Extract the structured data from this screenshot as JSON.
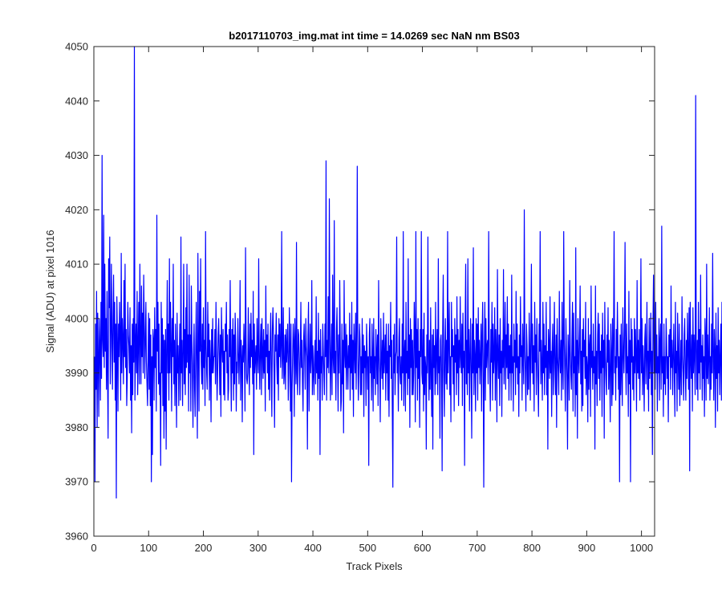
{
  "figure": {
    "background": "#ffffff",
    "axes_color": "#262626"
  },
  "chart_data": {
    "type": "line",
    "title": "b2017110703_img.mat int time = 14.0269 sec  NaN nm BS03",
    "xlabel": "Track Pixels",
    "ylabel": "Signal (ADU) at pixel 1016",
    "xlim": [
      0,
      1024
    ],
    "ylim": [
      3960,
      4050
    ],
    "xticks": [
      0,
      100,
      200,
      300,
      400,
      500,
      600,
      700,
      800,
      900,
      1000
    ],
    "yticks": [
      3960,
      3970,
      3980,
      3990,
      4000,
      4010,
      4020,
      4030,
      4040,
      4050
    ],
    "grid": false,
    "legend": "none",
    "series": [
      {
        "color": "#0000ff",
        "x_start": 1,
        "x_step": 1,
        "y": [
          3993,
          3970,
          3999,
          3987,
          4005,
          3980,
          4001,
          3993,
          3982,
          4000,
          3995,
          3985,
          4003,
          3989,
          4030,
          3996,
          3993,
          4019,
          3991,
          4010,
          3994,
          4000,
          3987,
          4005,
          3990,
          3978,
          4011,
          4002,
          4015,
          3988,
          3995,
          4010,
          3997,
          3987,
          4000,
          4008,
          3992,
          4003,
          3985,
          3999,
          3967,
          4004,
          3996,
          3983,
          3999,
          3993,
          4003,
          3997,
          3985,
          4012,
          3990,
          4000,
          3996,
          3988,
          4007,
          3993,
          4010,
          3991,
          3998,
          3984,
          3989,
          4003,
          3997,
          3995,
          3990,
          4002,
          3985,
          3995,
          3979,
          3999,
          3986,
          4000,
          3992,
          4050,
          3985,
          3994,
          3999,
          3990,
          4005,
          3986,
          3995,
          4003,
          3988,
          4010,
          3996,
          3988,
          4006,
          3993,
          4001,
          3990,
          4008,
          3999,
          3989,
          3996,
          4003,
          3992,
          3988,
          3984,
          3993,
          4001,
          3987,
          4000,
          3984,
          3997,
          3970,
          3993,
          3975,
          3998,
          3996,
          3985,
          4002,
          3991,
          3998,
          3983,
          4019,
          3994,
          4003,
          3988,
          3999,
          3986,
          3990,
          3973,
          4003,
          3990,
          4000,
          3984,
          3997,
          3978,
          3996,
          3983,
          3998,
          3976,
          3994,
          4007,
          3990,
          3999,
          3985,
          4011,
          3990,
          4003,
          3995,
          3983,
          4000,
          3993,
          4010,
          3988,
          3996,
          3984,
          3999,
          3991,
          3980,
          4001,
          3990,
          3995,
          3984,
          3993,
          3999,
          3985,
          4015,
          3990,
          3996,
          3984,
          3994,
          4010,
          3988,
          3998,
          3986,
          4002,
          3991,
          4010,
          3992,
          3997,
          3983,
          4008,
          3990,
          3997,
          3983,
          4006,
          3996,
          3989,
          3980,
          3993,
          3999,
          3987,
          3982,
          3995,
          4003,
          3990,
          3978,
          4012,
          3995,
          3983,
          4005,
          3994,
          4011,
          3992,
          3988,
          3999,
          3987,
          4002,
          3991,
          3996,
          3984,
          4016,
          3995,
          3990,
          3987,
          4003,
          3993,
          3999,
          3985,
          3996,
          3992,
          3981,
          3998,
          3990,
          4000,
          3990,
          3993,
          3993,
          3998,
          3988,
          4003,
          3994,
          3985,
          3990,
          3997,
          4000,
          3993,
          3986,
          3997,
          3982,
          4002,
          3995,
          3992,
          3998,
          3986,
          3994,
          3985,
          3999,
          3994,
          4003,
          3990,
          3997,
          3985,
          3987,
          3998,
          3993,
          4007,
          3991,
          3983,
          3998,
          3990,
          4000,
          3985,
          3997,
          3988,
          4001,
          3996,
          3983,
          3992,
          3990,
          4000,
          3994,
          3988,
          3994,
          4007,
          3985,
          3996,
          3993,
          3981,
          3995,
          3992,
          3999,
          3994,
          3983,
          4013,
          3996,
          3989,
          3988,
          3990,
          4002,
          3992,
          3986,
          3999,
          3991,
          4001,
          3993,
          3996,
          3988,
          4005,
          3975,
          3999,
          3990,
          3993,
          3995,
          3987,
          4000,
          3993,
          3990,
          4011,
          3993,
          3987,
          3995,
          3999,
          3986,
          4000,
          3994,
          3989,
          3998,
          3990,
          3996,
          3983,
          4006,
          3993,
          3997,
          3990,
          3999,
          3987,
          3994,
          3985,
          3996,
          4001,
          3990,
          3982,
          3998,
          4002,
          3997,
          3990,
          3980,
          3997,
          3994,
          4001,
          3992,
          3988,
          3997,
          3985,
          4000,
          3993,
          3999,
          3991,
          3995,
          4016,
          3989,
          3993,
          4002,
          3988,
          3990,
          3997,
          3987,
          3998,
          3992,
          3995,
          3999,
          3985,
          3990,
          4002,
          3995,
          3983,
          3999,
          3970,
          3987,
          3993,
          3999,
          3996,
          3982,
          4000,
          3994,
          3988,
          4014,
          3990,
          3986,
          3998,
          3997,
          3992,
          3986,
          3993,
          4003,
          3991,
          3996,
          3988,
          3983,
          3996,
          3999,
          3993,
          3987,
          4000,
          3995,
          3993,
          3976,
          3997,
          4003,
          3983,
          3992,
          3999,
          3990,
          3993,
          4007,
          3986,
          3995,
          3990,
          3986,
          3993,
          3996,
          3988,
          4004,
          3990,
          3994,
          3985,
          4001,
          3989,
          3996,
          3975,
          3998,
          3990,
          3993,
          3985,
          3999,
          3994,
          3990,
          3986,
          3999,
          3993,
          4029,
          3985,
          3996,
          3991,
          4004,
          3990,
          4022,
          3997,
          3985,
          3993,
          3999,
          3986,
          4008,
          3993,
          3990,
          4018,
          3990,
          3994,
          3985,
          3998,
          4002,
          3993,
          3983,
          3997,
          3990,
          4007,
          3995,
          3983,
          3985,
          3999,
          3988,
          3996,
          3979,
          4007,
          3994,
          3991,
          3999,
          3987,
          3997,
          3993,
          3987,
          3995,
          3991,
          4001,
          3985,
          3997,
          3990,
          4003,
          3987,
          3996,
          3982,
          3999,
          3994,
          3990,
          4001,
          3987,
          3998,
          4028,
          3993,
          3985,
          3991,
          3999,
          3996,
          3986,
          3993,
          3986,
          4000,
          3990,
          3997,
          3982,
          3995,
          3991,
          3994,
          3984,
          3999,
          3994,
          3987,
          3993,
          3973,
          3997,
          4000,
          3990,
          3993,
          3985,
          3999,
          3993,
          3983,
          4000,
          3989,
          3993,
          3986,
          3998,
          3994,
          3988,
          3997,
          3984,
          4007,
          3993,
          3990,
          3981,
          4000,
          3993,
          3989,
          3996,
          3987,
          4001,
          3990,
          3993,
          3997,
          3985,
          3999,
          3990,
          3994,
          3985,
          3999,
          3982,
          3995,
          3993,
          4003,
          3989,
          3996,
          3983,
          3969,
          3997,
          3990,
          3999,
          3986,
          3993,
          3994,
          4015,
          3990,
          3993,
          3983,
          3996,
          4000,
          3990,
          3988,
          3993,
          3985,
          3999,
          3990,
          4016,
          3984,
          3993,
          3996,
          3983,
          4003,
          3990,
          3994,
          3986,
          4011,
          3989,
          3997,
          3980,
          4000,
          3991,
          3998,
          3986,
          3996,
          3986,
          3990,
          4003,
          3997,
          3981,
          4016,
          3991,
          3998,
          3985,
          4000,
          3989,
          3994,
          3980,
          3998,
          3993,
          4016,
          3990,
          3988,
          3998,
          3983,
          4001,
          3986,
          3993,
          3991,
          3976,
          3997,
          3990,
          4015,
          3993,
          3985,
          3996,
          3987,
          4002,
          3990,
          3982,
          3997,
          3976,
          3998,
          3991,
          3995,
          3986,
          4003,
          3988,
          3994,
          3998,
          3986,
          4011,
          3990,
          3993,
          3978,
          3996,
          3997,
          3990,
          3972,
          3998,
          4008,
          3990,
          3982,
          3994,
          4000,
          3988,
          3996,
          3987,
          4016,
          3990,
          3996,
          4003,
          3986,
          3993,
          3981,
          4003,
          3993,
          3998,
          3988,
          3995,
          3983,
          4000,
          3992,
          3997,
          3986,
          4004,
          3990,
          3998,
          3984,
          3996,
          3991,
          4004,
          3993,
          3990,
          3999,
          3984,
          4001,
          3991,
          3994,
          3973,
          3998,
          4010,
          3988,
          3996,
          3986,
          4011,
          3990,
          3998,
          3983,
          3993,
          4000,
          3990,
          3978,
          3999,
          3990,
          4013,
          3986,
          3996,
          3993,
          3983,
          4000,
          3990,
          3999,
          3985,
          4002,
          3991,
          3996,
          3988,
          3993,
          3999,
          3983,
          3997,
          4003,
          3990,
          3969,
          3993,
          4003,
          3985,
          4000,
          3991,
          3995,
          3996,
          3988,
          4016,
          3996,
          3990,
          3983,
          3998,
          3992,
          4003,
          3985,
          3999,
          3990,
          3993,
          4002,
          3985,
          3998,
          3994,
          3981,
          4009,
          3993,
          3989,
          3997,
          3984,
          4000,
          3990,
          3994,
          3982,
          3996,
          3991,
          4009,
          3988,
          3994,
          4003,
          3987,
          3997,
          3991,
          4004,
          3989,
          3999,
          3985,
          3995,
          3990,
          3997,
          3985,
          4008,
          3990,
          3993,
          3983,
          3999,
          3992,
          3996,
          3986,
          4005,
          3991,
          3999,
          3988,
          3993,
          3982,
          3997,
          3990,
          4004,
          3993,
          3995,
          3985,
          3999,
          3993,
          3988,
          4020,
          3994,
          3990,
          3983,
          3999,
          3995,
          3986,
          3993,
          3987,
          4001,
          3994,
          3985,
          3997,
          4010,
          3990,
          3999,
          3988,
          3995,
          3983,
          4003,
          3992,
          3997,
          3986,
          4000,
          3993,
          3988,
          3982,
          3999,
          3994,
          4016,
          3988,
          3996,
          3991,
          3985,
          4003,
          3990,
          3999,
          3986,
          3995,
          3991,
          4003,
          3986,
          3994,
          3976,
          3998,
          3995,
          3989,
          4004,
          3990,
          3994,
          3982,
          3995,
          3999,
          3986,
          3993,
          4003,
          3991,
          3986,
          3997,
          3980,
          4000,
          3993,
          3990,
          3986,
          4005,
          3993,
          3990,
          3996,
          3985,
          4003,
          3992,
          3987,
          4016,
          3996,
          3990,
          3983,
          4000,
          3994,
          3989,
          3976,
          3997,
          3993,
          3985,
          4007,
          3994,
          3990,
          3987,
          3996,
          4003,
          3983,
          4001,
          3990,
          3993,
          3982,
          4013,
          3986,
          3996,
          3978,
          4000,
          3993,
          3990,
          3996,
          4006,
          3988,
          3994,
          3983,
          3998,
          3984,
          4000,
          3993,
          3996,
          3989,
          4003,
          3986,
          3993,
          3991,
          3981,
          4000,
          3987,
          3995,
          3997,
          3982,
          4006,
          3991,
          3994,
          3987,
          3999,
          3990,
          3993,
          3976,
          4006,
          3988,
          3994,
          3984,
          3997,
          4001,
          3989,
          3999,
          3985,
          3994,
          3990,
          3997,
          3982,
          4001,
          3991,
          3996,
          3978,
          4003,
          3993,
          3989,
          3986,
          3997,
          3992,
          4002,
          3987,
          3996,
          3990,
          3981,
          3999,
          3993,
          3984,
          4000,
          3986,
          3996,
          4016,
          3990,
          3993,
          3985,
          3998,
          3991,
          4003,
          3995,
          3987,
          3993,
          3970,
          3997,
          3986,
          3999,
          3990,
          3984,
          4002,
          3994,
          3990,
          3997,
          4014,
          3993,
          3986,
          3999,
          3990,
          3993,
          3982,
          4005,
          3988,
          3996,
          3970,
          4000,
          3992,
          3998,
          3987,
          3993,
          3985,
          4000,
          3990,
          3998,
          3993,
          3983,
          4007,
          3990,
          3996,
          3989,
          3998,
          3985,
          3993,
          4011,
          3990,
          4000,
          3986,
          3995,
          3990,
          3983,
          3996,
          3999,
          3988,
          3993,
          4003,
          3987,
          3994,
          3983,
          4000,
          3989,
          3993,
          4001,
          3986,
          3994,
          3975,
          3999,
          4008,
          3990,
          3994,
          3987,
          4003,
          3990,
          3997,
          3983,
          3993,
          3990,
          4000,
          3985,
          3996,
          3999,
          3987,
          4017,
          3990,
          3993,
          3982,
          3999,
          3988,
          3993,
          3986,
          4000,
          3995,
          3989,
          3993,
          3981,
          3997,
          3993,
          3998,
          3987,
          4006,
          3991,
          3996,
          3986,
          3993,
          3999,
          3990,
          3982,
          4003,
          3990,
          3994,
          3983,
          4001,
          3993,
          3987,
          3999,
          3984,
          3990,
          3996,
          3986,
          4004,
          3993,
          3990,
          3985,
          3997,
          4000,
          3990,
          3985,
          3996,
          3989,
          4001,
          3994,
          3987,
          4002,
          3972,
          4003,
          3993,
          3989,
          3997,
          3983,
          4002,
          3990,
          3997,
          3993,
          3986,
          4041,
          3994,
          3987,
          3996,
          3985,
          4003,
          3990,
          3998,
          3987,
          4008,
          3992,
          3995,
          3985,
          3997,
          3989,
          3993,
          3982,
          4000,
          3996,
          3985,
          4010,
          3989,
          3997,
          3988,
          3993,
          4002,
          3985,
          3993,
          3987,
          3999,
          3990,
          4012,
          3993,
          3985,
          3998,
          3994,
          3980,
          4001,
          3989,
          3995,
          3983,
          4002,
          3990,
          3996,
          3986,
          3993,
          3999,
          3985,
          4003,
          3989,
          3994,
          3983,
          3997,
          3995,
          3987,
          3993,
          3999,
          3986
        ]
      }
    ]
  }
}
